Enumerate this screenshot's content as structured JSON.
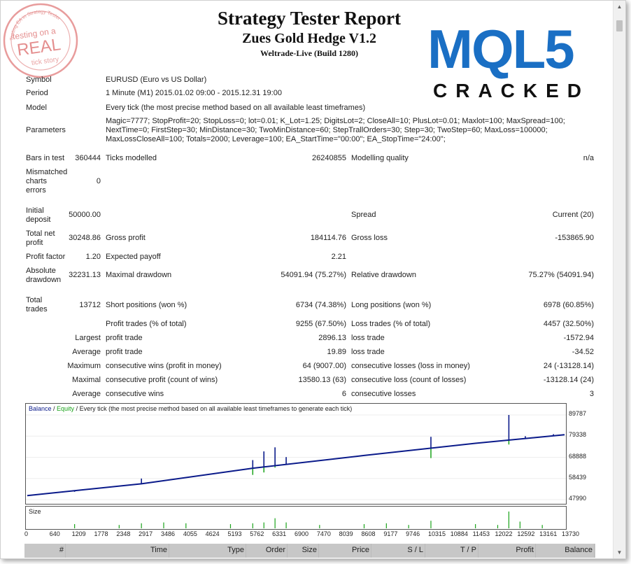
{
  "header": {
    "title": "Strategy Tester Report",
    "ea_name": "Zues Gold Hedge V1.2",
    "server": "Weltrade-Live (Build 1280)"
  },
  "stamp": {
    "text_top": "Testing EA in Strategy Tester",
    "line1": "testing on a",
    "line2": "REAL",
    "line3": "tick story",
    "color": "#e07b7b"
  },
  "logo": {
    "brand": "MQL5",
    "subtitle": "CRACKED",
    "brand_color": "#1a6fc4",
    "accent_color": "#e8322f"
  },
  "settings": {
    "symbol_label": "Symbol",
    "symbol": "EURUSD (Euro vs US Dollar)",
    "period_label": "Period",
    "period": "1 Minute (M1) 2015.01.02 09:00 - 2015.12.31 19:00",
    "model_label": "Model",
    "model": "Every tick (the most precise method based on all available least timeframes)",
    "parameters_label": "Parameters",
    "parameters": "Magic=7777; StopProfit=20; StopLoss=0; lot=0.01; K_Lot=1.25; DigitsLot=2; CloseAll=10; PlusLot=0.01; Maxlot=100; MaxSpread=100; NextTime=0; FirstStep=30; MinDistance=30; TwoMinDistance=60; StepTrallOrders=30; Step=30; TwoStep=60; MaxLoss=100000; MaxLossCloseAll=100; Totals=2000; Leverage=100; EA_StartTime=\"00:00\"; EA_StopTime=\"24:00\";"
  },
  "stats": {
    "bars_label": "Bars in test",
    "bars": "360444",
    "ticks_label": "Ticks modelled",
    "ticks": "26240855",
    "quality_label": "Modelling quality",
    "quality": "n/a",
    "mismatch_label": "Mismatched charts errors",
    "mismatch": "0",
    "deposit_label": "Initial deposit",
    "deposit": "50000.00",
    "spread_label": "Spread",
    "spread": "Current (20)",
    "net_label": "Total net profit",
    "net": "30248.86",
    "gross_profit_label": "Gross profit",
    "gross_profit": "184114.76",
    "gross_loss_label": "Gross loss",
    "gross_loss": "-153865.90",
    "pf_label": "Profit factor",
    "pf": "1.20",
    "payoff_label": "Expected payoff",
    "payoff": "2.21",
    "abs_dd_label": "Absolute drawdown",
    "abs_dd": "32231.13",
    "max_dd_label": "Maximal drawdown",
    "max_dd": "54091.94 (75.27%)",
    "rel_dd_label": "Relative drawdown",
    "rel_dd": "75.27% (54091.94)",
    "trades_label": "Total trades",
    "trades": "13712",
    "short_label": "Short positions (won %)",
    "short": "6734 (74.38%)",
    "long_label": "Long positions (won %)",
    "long": "6978 (60.85%)",
    "profit_trades_label": "Profit trades (% of total)",
    "profit_trades": "9255 (67.50%)",
    "loss_trades_label": "Loss trades (% of total)",
    "loss_trades": "4457 (32.50%)",
    "largest_label": "Largest",
    "largest_profit_label": "profit trade",
    "largest_profit": "2896.13",
    "largest_loss_label": "loss trade",
    "largest_loss": "-1572.94",
    "average_label": "Average",
    "average_profit_label": "profit trade",
    "average_profit": "19.89",
    "average_loss_label": "loss trade",
    "average_loss": "-34.52",
    "maximum_label": "Maximum",
    "max_cons_wins_label": "consecutive wins (profit in money)",
    "max_cons_wins": "64 (9007.00)",
    "max_cons_losses_label": "consecutive losses (loss in money)",
    "max_cons_losses": "24 (-13128.14)",
    "maximal_label": "Maximal",
    "maximal_profit_label": "consecutive profit (count of wins)",
    "maximal_profit": "13580.13 (63)",
    "maximal_loss_label": "consecutive loss (count of losses)",
    "maximal_loss": "-13128.14 (24)",
    "avg2_label": "Average",
    "avg_cons_wins_label": "consecutive wins",
    "avg_cons_wins": "6",
    "avg_cons_losses_label": "consecutive losses",
    "avg_cons_losses": "3"
  },
  "chart_legend": {
    "balance": "Balance",
    "sep1": " / ",
    "equity": "Equity",
    "rest": " / Every tick (the most precise method based on all available least timeframes to generate each tick)"
  },
  "size_label": "Size",
  "chart_data": {
    "type": "line",
    "series": [
      {
        "name": "Balance"
      },
      {
        "name": "Equity"
      }
    ],
    "yticks": [
      "89787",
      "79338",
      "68888",
      "58439",
      "47990"
    ],
    "ylim": [
      47990,
      89787
    ],
    "xticks": [
      "0",
      "640",
      "1209",
      "1778",
      "2348",
      "2917",
      "3486",
      "4055",
      "4624",
      "5193",
      "5762",
      "6331",
      "6900",
      "7470",
      "8039",
      "8608",
      "9177",
      "9746",
      "10315",
      "10884",
      "11453",
      "12022",
      "12592",
      "13161",
      "13730"
    ],
    "xlim": [
      0,
      13730
    ],
    "balance_points": [
      [
        0,
        50000
      ],
      [
        2917,
        55800
      ],
      [
        5762,
        63500
      ],
      [
        8608,
        69800
      ],
      [
        11453,
        75800
      ],
      [
        13730,
        80000
      ]
    ],
    "balance_spikes": [
      [
        1209,
        51850
      ],
      [
        2917,
        58400
      ],
      [
        5762,
        67500
      ],
      [
        6047,
        71800
      ],
      [
        6331,
        73800
      ],
      [
        6616,
        69000
      ],
      [
        10315,
        79000
      ],
      [
        12307,
        89787
      ],
      [
        12728,
        79300
      ],
      [
        13446,
        80300
      ]
    ],
    "equity_dips": [
      [
        5762,
        60200
      ],
      [
        6047,
        61400
      ],
      [
        6331,
        63800
      ],
      [
        10315,
        68500
      ],
      [
        12307,
        75200
      ]
    ],
    "size_bars": [
      [
        1209,
        0.25
      ],
      [
        2348,
        0.2
      ],
      [
        2917,
        0.3
      ],
      [
        3486,
        0.35
      ],
      [
        4055,
        0.3
      ],
      [
        5193,
        0.25
      ],
      [
        5762,
        0.3
      ],
      [
        6047,
        0.35
      ],
      [
        6331,
        0.6
      ],
      [
        6616,
        0.35
      ],
      [
        7470,
        0.2
      ],
      [
        8608,
        0.25
      ],
      [
        9177,
        0.3
      ],
      [
        9746,
        0.2
      ],
      [
        10315,
        0.45
      ],
      [
        11453,
        0.25
      ],
      [
        12022,
        0.2
      ],
      [
        12307,
        1.0
      ],
      [
        12592,
        0.4
      ],
      [
        13161,
        0.2
      ]
    ],
    "colors": {
      "balance": "#0a1a8a",
      "equity": "#1aa31a",
      "size": "#1aa31a"
    }
  },
  "table_headers": [
    "#",
    "Time",
    "Type",
    "Order",
    "Size",
    "Price",
    "S / L",
    "T / P",
    "Profit",
    "Balance"
  ]
}
